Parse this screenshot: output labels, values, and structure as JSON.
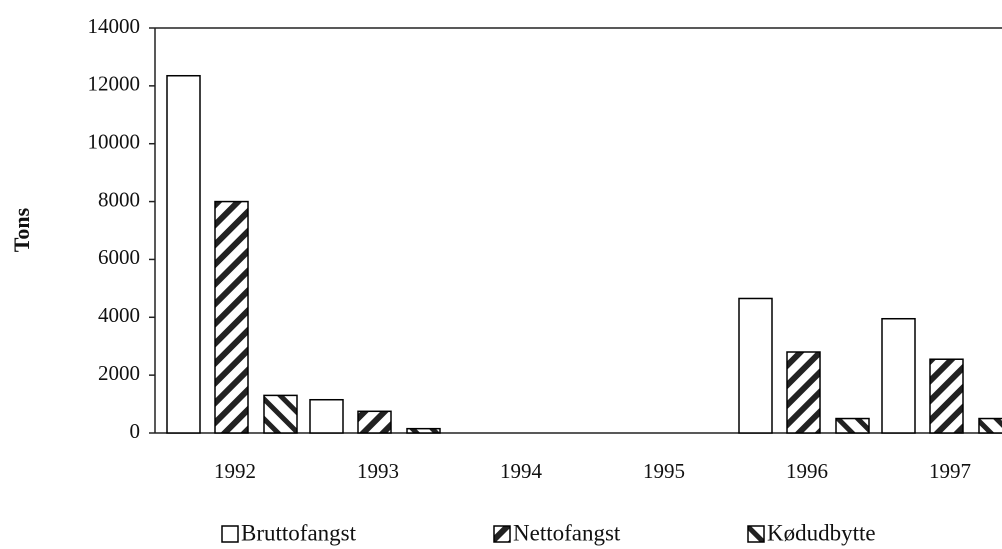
{
  "chart_data": {
    "type": "bar",
    "y_label": "Tons",
    "categories": [
      "1992",
      "1993",
      "1994",
      "1995",
      "1996",
      "1997"
    ],
    "series": [
      {
        "name": "Bruttofangst",
        "color": "#000000",
        "hatch": "none",
        "values": [
          12350,
          1150,
          0,
          0,
          4650,
          3950
        ]
      },
      {
        "name": "Nettofangst",
        "color": "#000000",
        "hatch": "forward",
        "values": [
          8000,
          750,
          0,
          0,
          2800,
          2550
        ]
      },
      {
        "name": "Kødudbytte",
        "color": "#000000",
        "hatch": "backward",
        "values": [
          1300,
          150,
          0,
          0,
          500,
          500
        ]
      }
    ],
    "ylim": [
      0,
      14000
    ],
    "yticks": [
      0,
      2000,
      4000,
      6000,
      8000,
      10000,
      12000,
      14000
    ],
    "grid": false
  }
}
